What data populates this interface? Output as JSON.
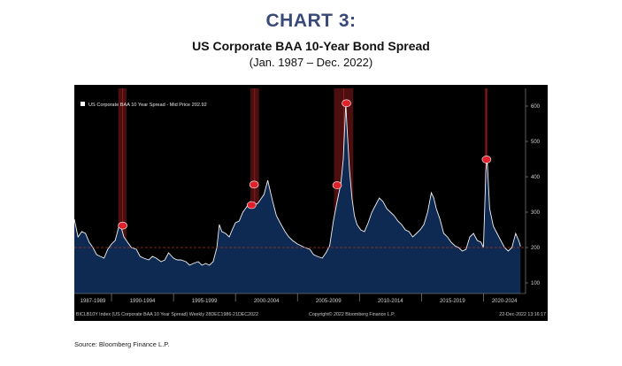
{
  "header": {
    "title": "CHART 3:",
    "subtitle": "US Corporate BAA 10-Year Bond Spread",
    "range": "(Jan. 1987 – Dec. 2022)"
  },
  "footer": {
    "source": "Source:  Bloomberg Finance L.P."
  },
  "colors": {
    "background": "#000000",
    "area_fill": "#0e2a52",
    "line": "#f2f2f2",
    "recession": "#8b1a1a",
    "marker": "#e0202a",
    "reference": "#b03020"
  },
  "chart_data": {
    "type": "area",
    "title": "CHART 3:",
    "subtitle": "US Corporate BAA 10-Year Bond Spread",
    "legend": "US Corporate BAA 10 Year Spread - Mid Price 202.92",
    "legend_position": "top-left",
    "xlim": [
      1987.0,
      2023.4
    ],
    "ylim": [
      70,
      650
    ],
    "y_ticks": [
      100,
      200,
      300,
      400,
      500,
      600
    ],
    "x_tick_labels": [
      {
        "label": "1987-1989",
        "from": 1987.0,
        "to": 1990.0
      },
      {
        "label": "1990-1994",
        "from": 1990.0,
        "to": 1995.0
      },
      {
        "label": "1995-1999",
        "from": 1995.0,
        "to": 2000.0
      },
      {
        "label": "2000-2004",
        "from": 2000.0,
        "to": 2005.0
      },
      {
        "label": "2005-2009",
        "from": 2005.0,
        "to": 2010.0
      },
      {
        "label": "2010-2014",
        "from": 2010.0,
        "to": 2015.0
      },
      {
        "label": "2015-2019",
        "from": 2015.0,
        "to": 2020.0
      },
      {
        "label": "2020-2024",
        "from": 2020.0,
        "to": 2024.0
      }
    ],
    "reference_line": 200,
    "recession_bands": [
      [
        1990.55,
        1991.2
      ],
      [
        2001.2,
        2001.9
      ],
      [
        2007.95,
        2009.5
      ],
      [
        2020.1,
        2020.35
      ]
    ],
    "peak_markers": [
      {
        "x": 1990.9,
        "y": 262
      },
      {
        "x": 2001.3,
        "y": 320
      },
      {
        "x": 2001.5,
        "y": 378
      },
      {
        "x": 2008.2,
        "y": 376
      },
      {
        "x": 2008.95,
        "y": 608
      },
      {
        "x": 2020.25,
        "y": 449
      }
    ],
    "x": [
      1987.0,
      1987.3,
      1987.6,
      1987.9,
      1988.2,
      1988.5,
      1988.8,
      1989.1,
      1989.4,
      1989.7,
      1990.0,
      1990.3,
      1990.6,
      1990.8,
      1991.0,
      1991.3,
      1991.6,
      1992.0,
      1992.3,
      1992.6,
      1993.0,
      1993.3,
      1993.6,
      1994.0,
      1994.3,
      1994.6,
      1995.0,
      1995.3,
      1995.6,
      1996.0,
      1996.3,
      1996.6,
      1997.0,
      1997.3,
      1997.6,
      1997.9,
      1998.2,
      1998.5,
      1998.7,
      1998.9,
      1999.2,
      1999.5,
      1999.8,
      2000.0,
      2000.3,
      2000.6,
      2000.9,
      2001.2,
      2001.5,
      2001.8,
      2002.0,
      2002.3,
      2002.6,
      2002.8,
      2003.0,
      2003.3,
      2003.6,
      2004.0,
      2004.3,
      2004.6,
      2005.0,
      2005.3,
      2005.6,
      2006.0,
      2006.3,
      2006.6,
      2007.0,
      2007.3,
      2007.6,
      2007.9,
      2008.2,
      2008.5,
      2008.7,
      2008.9,
      2009.0,
      2009.2,
      2009.4,
      2009.6,
      2009.8,
      2010.1,
      2010.4,
      2010.7,
      2011.0,
      2011.3,
      2011.6,
      2011.9,
      2012.2,
      2012.5,
      2012.8,
      2013.1,
      2013.4,
      2013.7,
      2014.0,
      2014.3,
      2014.6,
      2014.9,
      2015.2,
      2015.5,
      2015.8,
      2016.0,
      2016.2,
      2016.5,
      2016.8,
      2017.1,
      2017.4,
      2017.7,
      2018.0,
      2018.3,
      2018.6,
      2018.9,
      2019.2,
      2019.5,
      2019.8,
      2020.0,
      2020.2,
      2020.3,
      2020.5,
      2020.8,
      2021.1,
      2021.4,
      2021.7,
      2022.0,
      2022.3,
      2022.6,
      2022.9,
      2022.99
    ],
    "values": [
      280,
      230,
      245,
      240,
      215,
      200,
      180,
      175,
      170,
      195,
      210,
      220,
      260,
      255,
      230,
      215,
      200,
      195,
      175,
      170,
      165,
      175,
      170,
      160,
      165,
      185,
      170,
      165,
      165,
      160,
      150,
      155,
      160,
      150,
      155,
      150,
      160,
      200,
      265,
      245,
      240,
      230,
      255,
      270,
      275,
      300,
      315,
      330,
      320,
      325,
      335,
      350,
      390,
      360,
      330,
      290,
      270,
      245,
      230,
      220,
      210,
      205,
      200,
      195,
      180,
      175,
      170,
      185,
      205,
      275,
      330,
      380,
      450,
      608,
      540,
      420,
      340,
      290,
      265,
      250,
      245,
      270,
      300,
      320,
      340,
      330,
      310,
      300,
      290,
      275,
      265,
      250,
      245,
      230,
      240,
      250,
      265,
      300,
      355,
      340,
      310,
      280,
      240,
      230,
      215,
      205,
      200,
      190,
      195,
      230,
      240,
      220,
      215,
      200,
      420,
      449,
      310,
      260,
      240,
      220,
      200,
      190,
      200,
      240,
      215,
      203
    ]
  }
}
